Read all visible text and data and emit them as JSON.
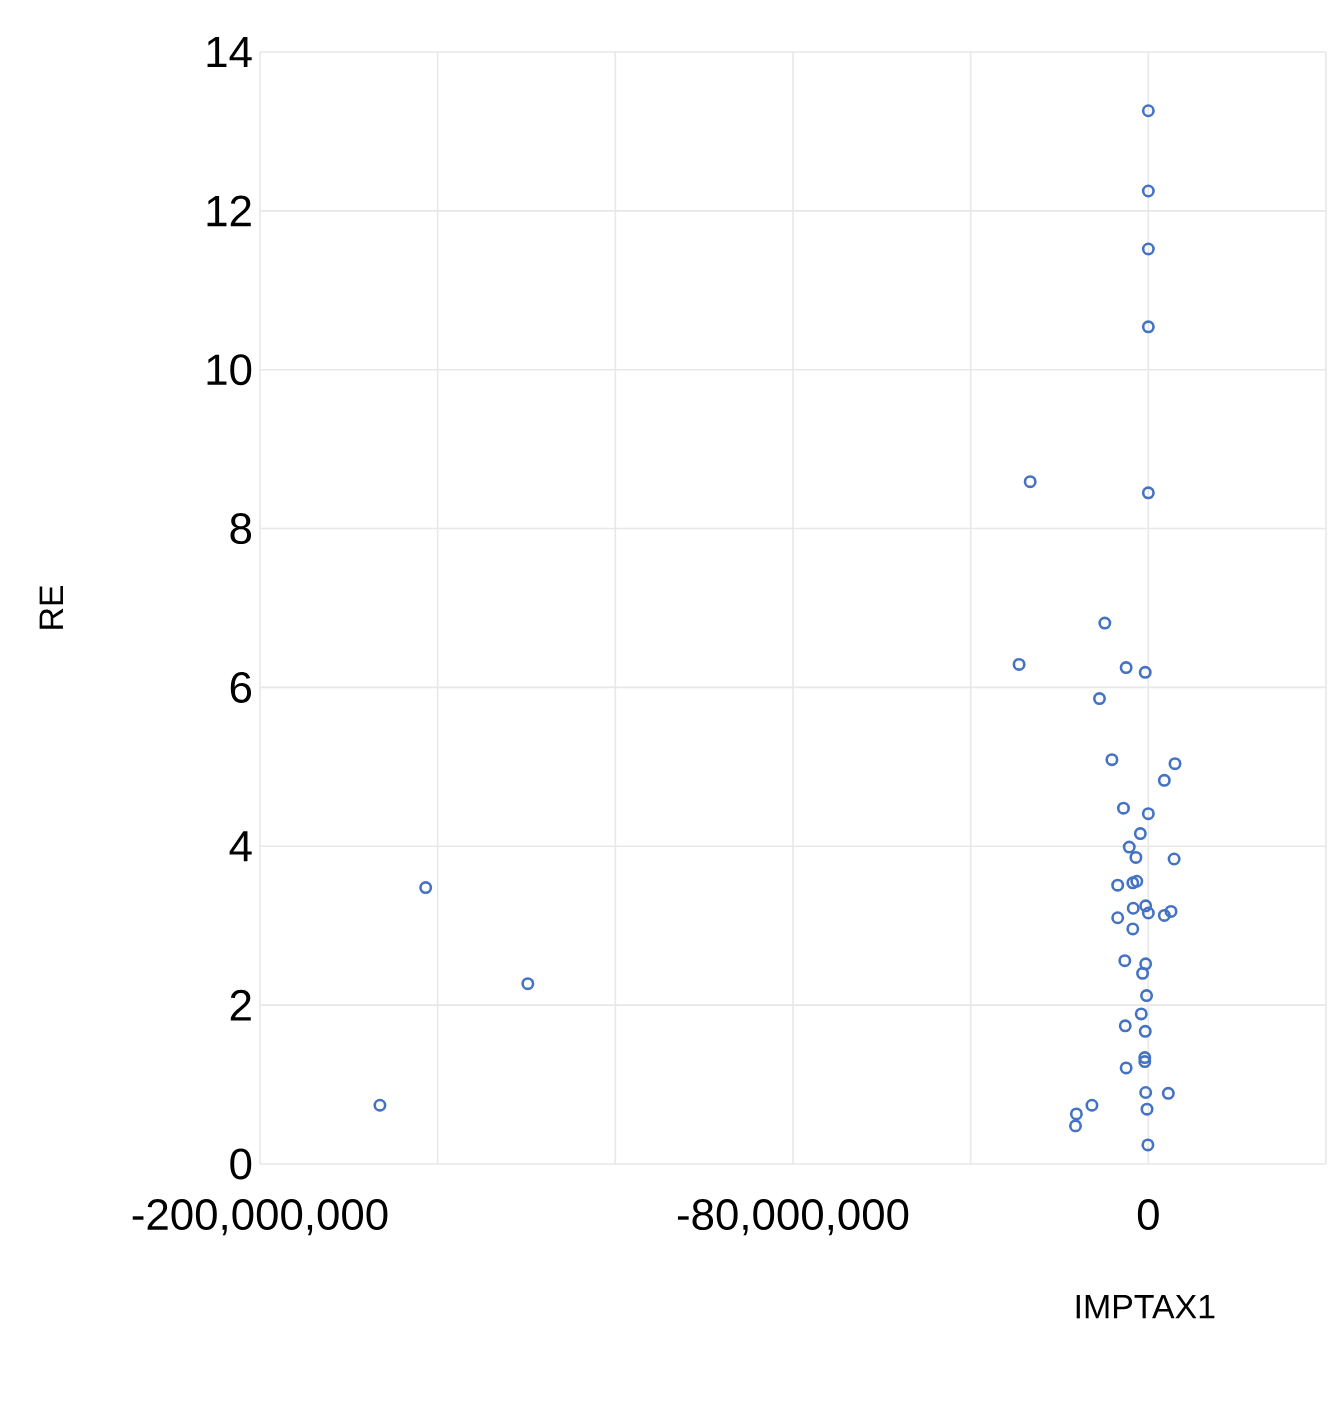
{
  "chart_data": {
    "type": "scatter",
    "xlabel": "IMPTAX1",
    "ylabel": "RE",
    "xlim": [
      -200000000,
      40000000
    ],
    "xticks": [
      {
        "value": -200000000,
        "label": "-200,000,000"
      },
      {
        "value": -160000000,
        "label": null
      },
      {
        "value": -120000000,
        "label": null
      },
      {
        "value": -80000000,
        "label": "-80,000,000"
      },
      {
        "value": -40000000,
        "label": null
      },
      {
        "value": 0,
        "label": "0"
      },
      {
        "value": 40000000,
        "label": null
      }
    ],
    "ylim": [
      0,
      14
    ],
    "yticks": [
      0,
      2,
      4,
      6,
      8,
      10,
      12,
      14
    ],
    "grid": true,
    "marker": "circle",
    "series": [
      {
        "color": "#4472c4",
        "x": [
          -173000000,
          -162700000,
          -139700000,
          0,
          0,
          0,
          0,
          -26600000,
          0,
          -9800000,
          -29100000,
          -5000000,
          -700000,
          -11000000,
          -8200000,
          6000000,
          3600000,
          -5600000,
          0,
          -1800000,
          -4300000,
          -2800000,
          5800000,
          -6900000,
          -3500000,
          -2600000,
          -3400000,
          -600000,
          0,
          3600000,
          5100000,
          -6900000,
          -3500000,
          -5300000,
          -600000,
          -1300000,
          -400000,
          -1600000,
          -5200000,
          -700000,
          -800000,
          -800000,
          -5000000,
          -600000,
          4500000,
          -300000,
          -12700000,
          -16200000,
          -16400000,
          -100000
        ],
        "values": [
          0.74,
          3.48,
          2.27,
          13.26,
          12.25,
          11.52,
          10.54,
          8.59,
          8.45,
          6.81,
          6.29,
          6.25,
          6.19,
          5.86,
          5.09,
          5.04,
          4.83,
          4.48,
          4.41,
          4.16,
          3.99,
          3.86,
          3.84,
          3.51,
          3.54,
          3.56,
          3.22,
          3.25,
          3.16,
          3.13,
          3.18,
          3.1,
          2.96,
          2.56,
          2.52,
          2.4,
          2.12,
          1.89,
          1.74,
          1.67,
          1.34,
          1.29,
          1.21,
          0.9,
          0.89,
          0.69,
          0.74,
          0.63,
          0.48,
          0.24
        ]
      }
    ]
  }
}
